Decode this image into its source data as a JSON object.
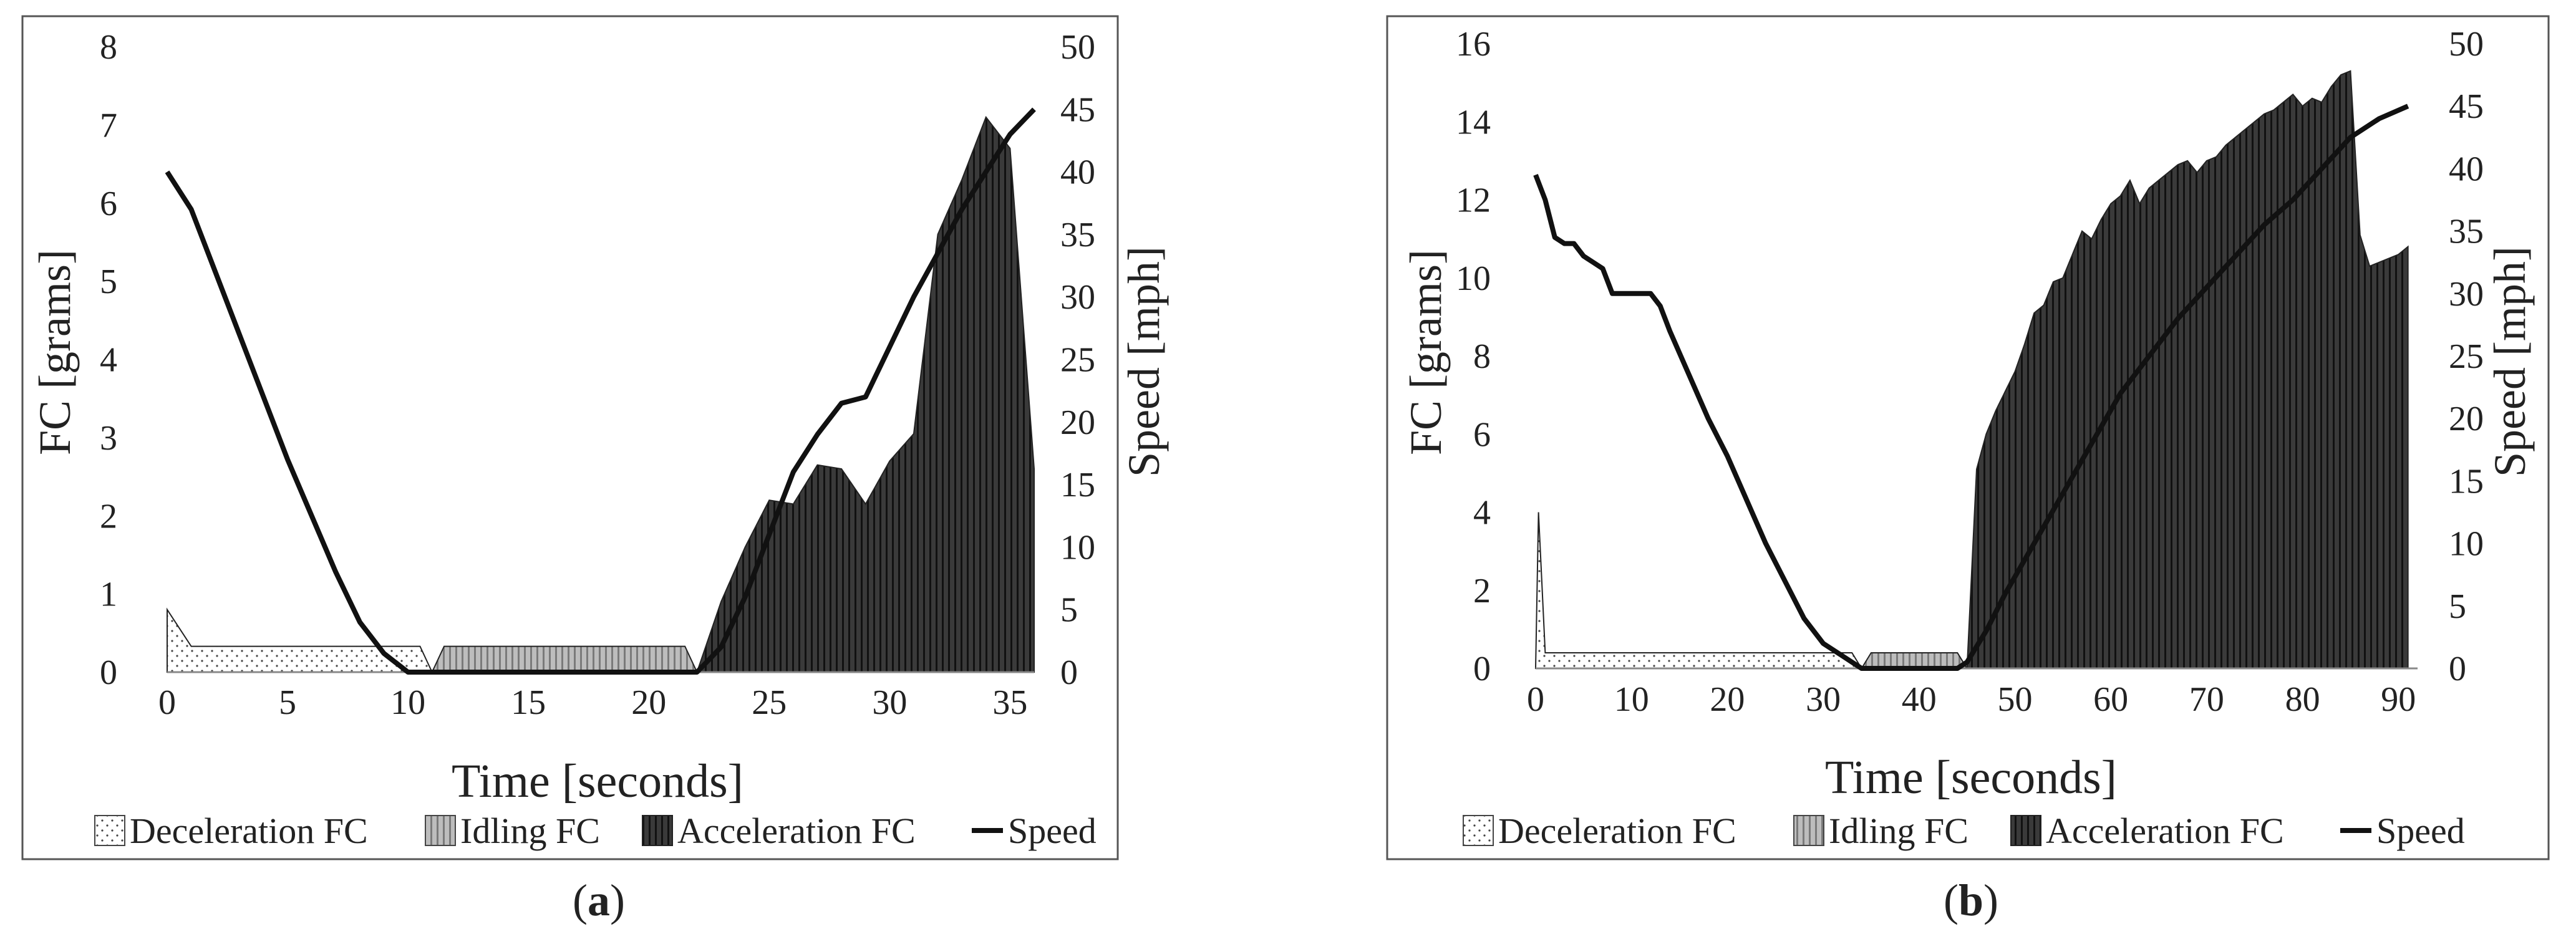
{
  "colors": {
    "ink": "#1a1a1a",
    "deceleration_fill": "#ffffff",
    "idling_fill": "#c8c8c8",
    "acceleration_fill": "#3a3a3a",
    "frame": "#555555"
  },
  "chart_data": [
    {
      "type": "area",
      "label": "(a)",
      "label_letter": "a",
      "xlabel": "Time [seconds]",
      "ylabel_left": "FC [grams]",
      "ylabel_right": "Speed [mph]",
      "xlim": [
        0,
        36
      ],
      "ylim_left": [
        0,
        8
      ],
      "ylim_right": [
        0,
        50
      ],
      "xticks": [
        0,
        5,
        10,
        15,
        20,
        25,
        30,
        35
      ],
      "yticks_left": [
        0,
        1,
        2,
        3,
        4,
        5,
        6,
        7,
        8
      ],
      "yticks_right": [
        0,
        5,
        10,
        15,
        20,
        25,
        30,
        35,
        40,
        45,
        50
      ],
      "legend": [
        "Deceleration FC",
        "Idling FC",
        "Acceleration FC",
        "Speed"
      ],
      "series": [
        {
          "name": "Deceleration FC",
          "kind": "area",
          "fill": "deceleration_fill",
          "x": [
            0,
            1,
            10.5,
            11
          ],
          "y": [
            0.8,
            0.33,
            0.33,
            0
          ]
        },
        {
          "name": "Idling FC",
          "kind": "area",
          "fill": "idling_fill",
          "x": [
            11,
            11.5,
            12,
            21,
            21.5,
            22
          ],
          "y": [
            0,
            0.33,
            0.33,
            0.33,
            0.33,
            0
          ]
        },
        {
          "name": "Acceleration FC",
          "kind": "area",
          "fill": "acceleration_fill",
          "x": [
            22,
            23,
            24,
            25,
            26,
            27,
            28,
            29,
            30,
            31,
            32,
            33,
            34,
            35,
            36
          ],
          "y": [
            0,
            0.9,
            1.6,
            2.2,
            2.15,
            2.65,
            2.6,
            2.15,
            2.7,
            3.05,
            5.6,
            6.3,
            7.1,
            6.7,
            2.6
          ]
        },
        {
          "name": "Speed",
          "kind": "line",
          "axis": "right",
          "x": [
            0,
            1,
            2,
            3,
            4,
            5,
            6,
            7,
            8,
            9,
            10,
            11,
            12,
            14,
            16,
            18,
            20,
            22,
            23,
            24,
            25,
            26,
            27,
            28,
            29,
            30,
            31,
            32,
            33,
            34,
            35,
            36
          ],
          "y": [
            40,
            37,
            32,
            27,
            22,
            17,
            12.5,
            8,
            4,
            1.5,
            0,
            0,
            0,
            0,
            0,
            0,
            0,
            0,
            2,
            6,
            11,
            16,
            19,
            21.5,
            22,
            26,
            30,
            33.5,
            37,
            40,
            43,
            45
          ]
        }
      ]
    },
    {
      "type": "area",
      "label": "(b)",
      "label_letter": "b",
      "xlabel": "Time [seconds]",
      "ylabel_left": "FC [grams]",
      "ylabel_right": "Speed [mph]",
      "xlim": [
        0,
        92
      ],
      "ylim_left": [
        0,
        16
      ],
      "ylim_right": [
        0,
        50
      ],
      "xticks": [
        0,
        10,
        20,
        30,
        40,
        50,
        60,
        70,
        80,
        90
      ],
      "yticks_left": [
        0,
        2,
        4,
        6,
        8,
        10,
        12,
        14,
        16
      ],
      "yticks_right": [
        0,
        5,
        10,
        15,
        20,
        25,
        30,
        35,
        40,
        45,
        50
      ],
      "legend": [
        "Deceleration FC",
        "Idling FC",
        "Acceleration FC",
        "Speed"
      ],
      "series": [
        {
          "name": "Deceleration FC",
          "kind": "area",
          "fill": "deceleration_fill",
          "x": [
            0,
            0.3,
            1,
            33,
            34
          ],
          "y": [
            0,
            4,
            0.4,
            0.4,
            0
          ]
        },
        {
          "name": "Idling FC",
          "kind": "area",
          "fill": "idling_fill",
          "x": [
            34,
            35,
            44,
            45
          ],
          "y": [
            0,
            0.4,
            0.4,
            0
          ]
        },
        {
          "name": "Acceleration FC",
          "kind": "area",
          "fill": "acceleration_fill",
          "x": [
            45,
            46,
            47,
            48,
            49,
            50,
            51,
            52,
            53,
            54,
            55,
            56,
            57,
            58,
            59,
            60,
            61,
            62,
            63,
            64,
            65,
            66,
            67,
            68,
            69,
            70,
            71,
            72,
            73,
            74,
            75,
            76,
            77,
            78,
            79,
            80,
            81,
            82,
            83,
            84,
            85,
            86,
            87,
            88,
            89,
            90,
            91
          ],
          "y": [
            0,
            5.1,
            6,
            6.6,
            7.1,
            7.6,
            8.3,
            9.1,
            9.3,
            9.9,
            10,
            10.6,
            11.2,
            11,
            11.5,
            11.9,
            12.1,
            12.5,
            11.9,
            12.3,
            12.5,
            12.7,
            12.9,
            13,
            12.7,
            13,
            13.1,
            13.4,
            13.6,
            13.8,
            14,
            14.2,
            14.3,
            14.5,
            14.7,
            14.4,
            14.6,
            14.5,
            14.9,
            15.2,
            15.3,
            11.1,
            10.3,
            10.4,
            10.5,
            10.6,
            10.8
          ]
        },
        {
          "name": "Speed",
          "kind": "line",
          "axis": "right",
          "x": [
            0,
            1,
            2,
            3,
            4,
            5,
            6,
            7,
            8,
            9,
            10,
            11,
            12,
            13,
            14,
            16,
            18,
            20,
            22,
            24,
            26,
            28,
            30,
            32,
            33,
            34,
            35,
            38,
            41,
            44,
            45,
            47,
            49,
            52,
            55,
            58,
            61,
            64,
            67,
            70,
            73,
            76,
            79,
            82,
            85,
            88,
            91
          ],
          "y": [
            39.5,
            37.5,
            34.5,
            34,
            34,
            33,
            32.5,
            32,
            30,
            30,
            30,
            30,
            30,
            29,
            27,
            23.5,
            20,
            17,
            13.5,
            10,
            7,
            4,
            2,
            1,
            0.5,
            0,
            0,
            0,
            0,
            0,
            0.5,
            3,
            6,
            10,
            14,
            18,
            22,
            25,
            28,
            30.5,
            33,
            35.5,
            37.5,
            40,
            42.5,
            44,
            45
          ]
        }
      ]
    }
  ]
}
